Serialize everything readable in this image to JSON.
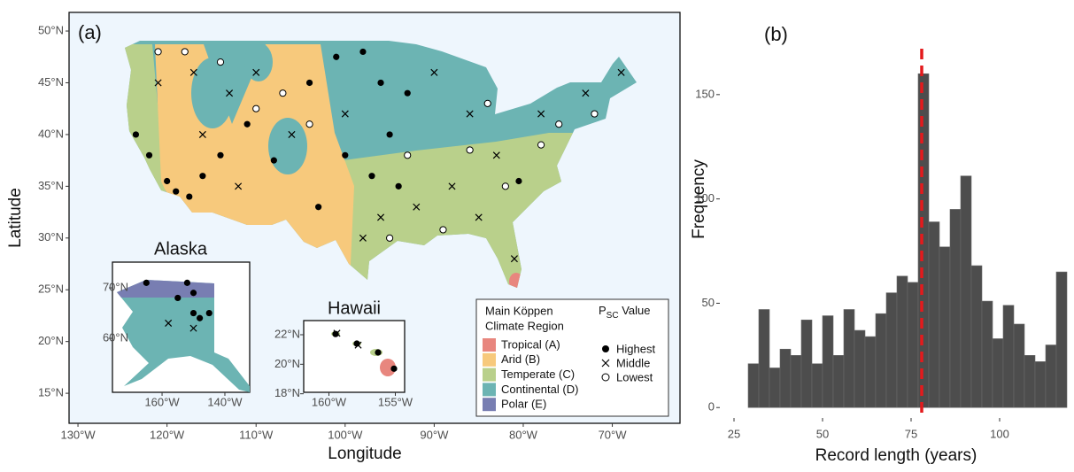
{
  "chart_data": [
    {
      "type": "map",
      "label": "(a)",
      "x_label": "Longitude",
      "y_label": "Latitude",
      "xlim": [
        -131,
        -62.4
      ],
      "ylim": [
        12.1,
        51.8
      ],
      "xticks": [
        {
          "value": -130,
          "label": "130°W"
        },
        {
          "value": -120,
          "label": "120°W"
        },
        {
          "value": -110,
          "label": "110°W"
        },
        {
          "value": -100,
          "label": "100°W"
        },
        {
          "value": -90,
          "label": "90°W"
        },
        {
          "value": -80,
          "label": "80°W"
        },
        {
          "value": -70,
          "label": "70°W"
        }
      ],
      "yticks": [
        {
          "value": 15,
          "label": "15°N"
        },
        {
          "value": 20,
          "label": "20°N"
        },
        {
          "value": 25,
          "label": "25°N"
        },
        {
          "value": 30,
          "label": "30°N"
        },
        {
          "value": 35,
          "label": "35°N"
        },
        {
          "value": 40,
          "label": "40°N"
        },
        {
          "value": 45,
          "label": "45°N"
        },
        {
          "value": 50,
          "label": "50°N"
        }
      ],
      "series": [
        {
          "name": "Highest",
          "marker": "filled",
          "x": [
            -123.5,
            -122,
            -120,
            -119,
            -117.5,
            -116,
            -114,
            -111,
            -108,
            -104,
            -101,
            -98,
            -96,
            -95,
            -100,
            -97,
            -94,
            -93,
            -80.5,
            -103
          ],
          "y": [
            40,
            38,
            35.5,
            34.5,
            34,
            36,
            38,
            41,
            37.5,
            45,
            47.5,
            48,
            45,
            40,
            38,
            36,
            35,
            44,
            35.5,
            33
          ]
        },
        {
          "name": "Middle",
          "marker": "cross",
          "x": [
            -121,
            -117,
            -113,
            -110,
            -106,
            -100,
            -96,
            -92,
            -88,
            -85,
            -90,
            -86,
            -78,
            -73,
            -69,
            -112,
            -83,
            -98,
            -81,
            -116
          ],
          "y": [
            45,
            46,
            44,
            46,
            40,
            42,
            32,
            33,
            35,
            32,
            46,
            42,
            42,
            44,
            46,
            35,
            38,
            30,
            28,
            40
          ]
        },
        {
          "name": "Lowest",
          "marker": "open",
          "x": [
            -110,
            -107,
            -114,
            -118,
            -86,
            -82,
            -78,
            -84,
            -72,
            -76,
            -89,
            -95,
            -104,
            -121,
            -93
          ],
          "y": [
            42.5,
            44,
            47,
            48,
            38.5,
            35,
            39,
            43,
            42,
            41,
            30.8,
            30,
            41,
            48,
            38
          ]
        }
      ],
      "insets": [
        {
          "title": "Alaska",
          "xlim": [
            -175.8,
            -132.1
          ],
          "ylim": [
            49.3,
            75.1
          ],
          "xticks": [
            {
              "value": -160,
              "label": "160°W"
            },
            {
              "value": -140,
              "label": "140°W"
            }
          ],
          "yticks": [
            {
              "value": 60,
              "label": "60°N"
            },
            {
              "value": 70,
              "label": "70°N"
            }
          ],
          "series": [
            {
              "marker": "filled",
              "x": [
                -165,
                -152,
                -150,
                -150,
                -148,
                -155,
                -145
              ],
              "y": [
                71,
                71,
                69,
                65,
                64,
                68,
                65
              ]
            },
            {
              "marker": "cross",
              "x": [
                -150,
                -158
              ],
              "y": [
                62,
                63
              ]
            },
            {
              "marker": "open",
              "x": [],
              "y": []
            }
          ]
        },
        {
          "title": "Hawaii",
          "xlim": [
            -161.9,
            -154.3
          ],
          "ylim": [
            18.1,
            22.96
          ],
          "xticks": [
            {
              "value": -160,
              "label": "160°W"
            },
            {
              "value": -155,
              "label": "155°W"
            }
          ],
          "yticks": [
            {
              "value": 18,
              "label": "18°N"
            },
            {
              "value": 20,
              "label": "20°N"
            },
            {
              "value": 22,
              "label": "22°N"
            }
          ],
          "series": [
            {
              "marker": "filled",
              "x": [
                -159.5,
                -157.9,
                -156.3,
                -155.1
              ],
              "y": [
                22.05,
                21.4,
                20.8,
                19.7
              ]
            },
            {
              "marker": "cross",
              "x": [
                -159.4,
                -157.8
              ],
              "y": [
                22.1,
                21.3
              ]
            },
            {
              "marker": "open",
              "x": [],
              "y": []
            }
          ]
        }
      ],
      "climate_legend": {
        "title": [
          "Main Köppen",
          "Climate Region"
        ],
        "names": [
          "Tropical (A)",
          "Arid (B)",
          "Temperate (C)",
          "Continental (D)",
          "Polar (E)"
        ],
        "colors": [
          "#e8867e",
          "#f7c97c",
          "#b9d08b",
          "#6cb4b3",
          "#787eb2"
        ]
      },
      "marker_legend": {
        "title": {
          "main": "P",
          "sub": "SC",
          "rest": " Value"
        }
      }
    },
    {
      "type": "histogram",
      "label": "(b)",
      "x_label": "Record length (years)",
      "y_label": "Frequency",
      "bins": [
        29,
        32,
        35,
        38,
        41,
        44,
        47,
        50,
        53,
        56,
        59,
        62,
        65,
        68,
        71,
        74,
        77,
        80,
        83,
        86,
        89,
        92,
        95,
        98,
        101,
        104,
        107,
        110,
        113,
        116,
        119
      ],
      "values": [
        21,
        47,
        19,
        28,
        25,
        42,
        21,
        44,
        25,
        47,
        37,
        34,
        45,
        55,
        63,
        60,
        160,
        89,
        77,
        95,
        111,
        68,
        51,
        33,
        49,
        40,
        25,
        22,
        30,
        65
      ],
      "color": "#4d4d4d",
      "vline": {
        "value": 78,
        "color": "#e41a1c"
      },
      "xlim": [
        21,
        120.5
      ],
      "ylim": [
        -5,
        172
      ],
      "xticks": [
        25,
        50,
        75,
        100
      ],
      "yticks": [
        0,
        50,
        100,
        150
      ]
    }
  ]
}
